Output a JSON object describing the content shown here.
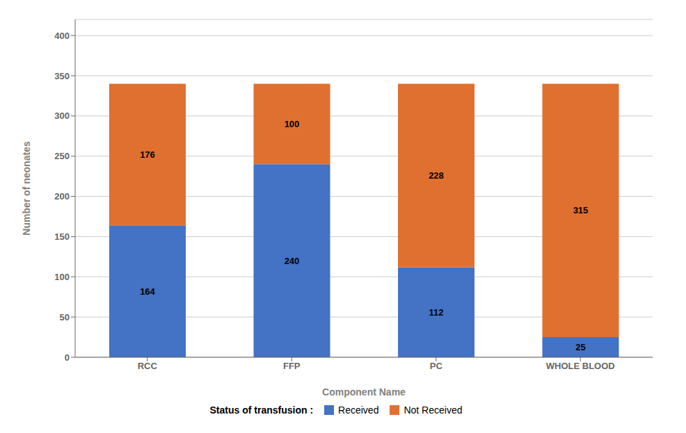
{
  "chart_data": {
    "type": "bar",
    "stacked": true,
    "categories": [
      "RCC",
      "FFP",
      "PC",
      "WHOLE BLOOD"
    ],
    "series": [
      {
        "name": "Received",
        "color": "#4472C4",
        "values": [
          164,
          240,
          112,
          25
        ]
      },
      {
        "name": "Not Received",
        "color": "#E07030",
        "values": [
          176,
          100,
          228,
          315
        ]
      }
    ],
    "xlabel": "Component Name",
    "ylabel": "Number of neonates",
    "ylim": [
      0,
      420
    ],
    "yticks": [
      0,
      50,
      100,
      150,
      200,
      250,
      300,
      350,
      400
    ],
    "grid": true,
    "data_labels": true,
    "legend": "bottom",
    "legend_title": "Status of transfusion :"
  }
}
